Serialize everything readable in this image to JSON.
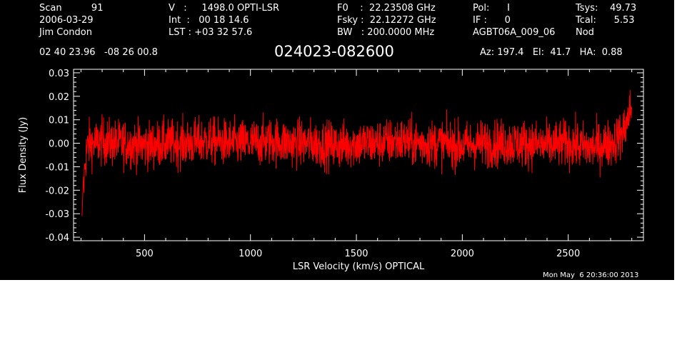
{
  "header": {
    "col1": [
      "Scan          91",
      "2006-03-29",
      "Jim Condon"
    ],
    "col2": [
      "V   :     1498.0 OPTI-LSR",
      "Int  :   00 18 14.6",
      "LST : +03 32 57.6"
    ],
    "col3": [
      "F0    :  22.23508 GHz",
      "Fsky :  22.12272 GHz",
      "BW   : 200.0000 MHz"
    ],
    "col4": [
      "Pol:      I",
      "IF :      0",
      "AGBT06A_009_06"
    ],
    "col5": [
      "Tsys:    49.73",
      "Tcal:      5.53",
      "Nod"
    ],
    "coords": "02 40 23.96   -08 26 00.8",
    "source": "024023-082600",
    "azel": "Az: 197.4   El:  41.7   HA:  0.88"
  },
  "timestamp": "Mon May  6 20:36:00 2013",
  "colors": {
    "background": "#000000",
    "axes": "#ffffff",
    "trace": "#ff0000"
  },
  "chart_data": {
    "type": "line",
    "title": "024023-082600",
    "xlabel": "LSR Velocity (km/s) OPTICAL",
    "ylabel": "Flux Density (Jy)",
    "xlim": [
      165,
      2855
    ],
    "ylim": [
      -0.0415,
      0.0315
    ],
    "x_ticks": [
      500,
      1000,
      1500,
      2000,
      2500
    ],
    "x_tick_labels": [
      "500",
      "1000",
      "1500",
      "2000",
      "2500"
    ],
    "y_ticks": [
      -0.04,
      -0.03,
      -0.02,
      -0.01,
      0.0,
      0.01,
      0.02,
      0.03
    ],
    "y_tick_labels": [
      "-0.04",
      "-0.03",
      "-0.02",
      "-0.01",
      "0.00",
      "0.01",
      "0.02",
      "0.03"
    ],
    "grid": false,
    "series": [
      {
        "x": [
          205,
          210,
          215,
          220,
          225,
          230,
          240,
          250,
          275,
          300,
          350,
          400,
          500,
          600,
          700,
          800,
          900,
          1000,
          1100,
          1200,
          1300,
          1400,
          1500,
          1600,
          1700,
          1800,
          1900,
          2000,
          2100,
          2200,
          2300,
          2400,
          2500,
          2550,
          2600,
          2650,
          2700,
          2720,
          2740,
          2760,
          2770,
          2780,
          2790,
          2800
        ],
        "y": [
          -0.024,
          -0.02,
          -0.015,
          -0.008,
          -0.004,
          -0.002,
          0.0,
          0.0,
          0.0,
          0.001,
          0.0,
          0.0,
          -0.001,
          0.0,
          0.0,
          0.001,
          0.0,
          0.0,
          0.001,
          0.0,
          0.0,
          -0.001,
          0.0,
          0.0,
          0.001,
          0.0,
          0.0,
          -0.001,
          0.0,
          0.0,
          0.0,
          -0.001,
          0.0,
          -0.001,
          -0.002,
          -0.001,
          0.0,
          0.001,
          0.003,
          0.005,
          0.007,
          0.01,
          0.013,
          0.016
        ],
        "noise_rms": 0.005
      }
    ]
  }
}
